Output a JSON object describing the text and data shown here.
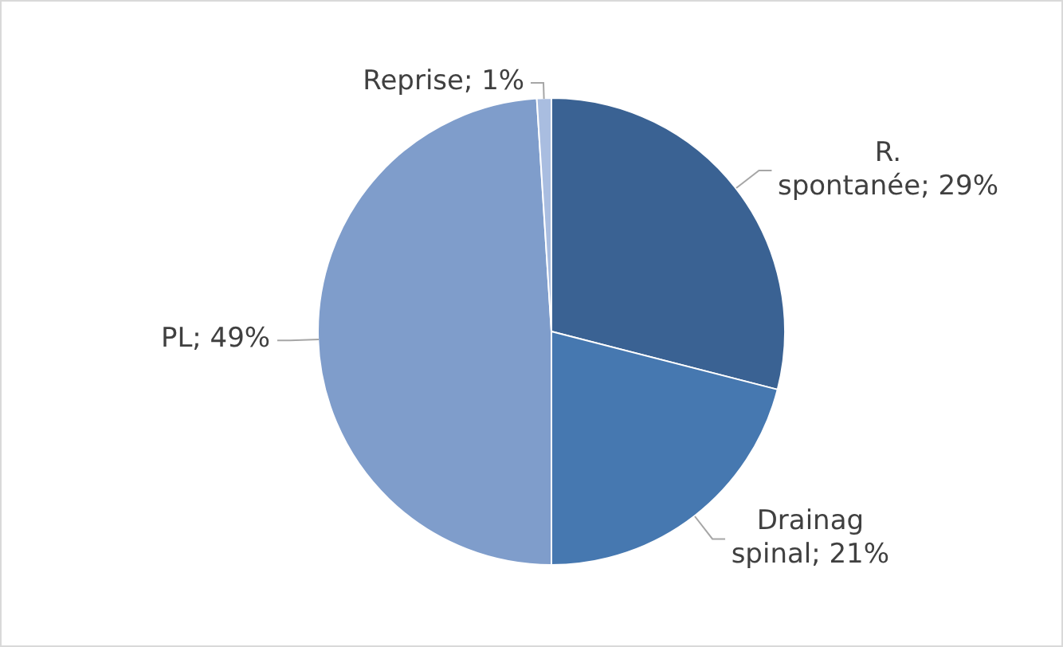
{
  "chart_data": {
    "type": "pie",
    "categories": [
      "R. spontanée",
      "Drainag spinal",
      "PL",
      "Reprise"
    ],
    "values": [
      29,
      21,
      49,
      1
    ],
    "colors": [
      "#3a6293",
      "#4678b0",
      "#7f9dcb",
      "#a9bde0"
    ],
    "data_labels": true,
    "value_labels": [
      "29%",
      "21%",
      "49%",
      "1%"
    ]
  }
}
